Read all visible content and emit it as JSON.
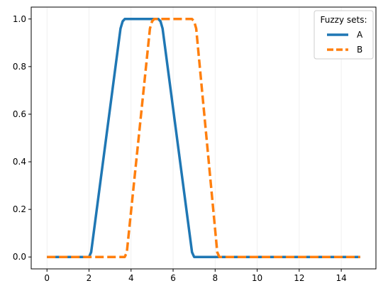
{
  "chart_data": {
    "type": "line",
    "title": "",
    "xlabel": "",
    "ylabel": "",
    "xlim": [
      -0.75,
      15.65
    ],
    "ylim": [
      -0.05,
      1.05
    ],
    "xticks": [
      0,
      2,
      4,
      6,
      8,
      10,
      12,
      14
    ],
    "yticks": [
      0.0,
      0.2,
      0.4,
      0.6,
      0.8,
      1.0
    ],
    "xtick_labels": [
      "0",
      "2",
      "4",
      "6",
      "8",
      "10",
      "12",
      "14"
    ],
    "ytick_labels": [
      "0.0",
      "0.2",
      "0.4",
      "0.6",
      "0.8",
      "1.0"
    ],
    "grid": "vertical-light",
    "legend": {
      "title": "Fuzzy sets:",
      "placement": "top-right"
    },
    "series": [
      {
        "name": "A",
        "color": "#1f77b4",
        "style": "solid",
        "x": [
          0,
          2.0,
          2.1,
          3.5,
          3.6,
          3.7,
          5.3,
          5.4,
          5.5,
          6.9,
          7.0,
          14.9
        ],
        "y": [
          0,
          0,
          0.02,
          0.96,
          0.99,
          1.0,
          1.0,
          0.99,
          0.96,
          0.02,
          0,
          0
        ]
      },
      {
        "name": "B",
        "color": "#ff7f0e",
        "style": "dashed",
        "x": [
          0,
          3.7,
          3.8,
          4.9,
          5.0,
          5.1,
          6.9,
          7.0,
          7.1,
          8.1,
          8.2,
          14.9
        ],
        "y": [
          0,
          0,
          0.02,
          0.96,
          0.99,
          1.0,
          1.0,
          0.99,
          0.96,
          0.02,
          0,
          0
        ]
      }
    ]
  }
}
